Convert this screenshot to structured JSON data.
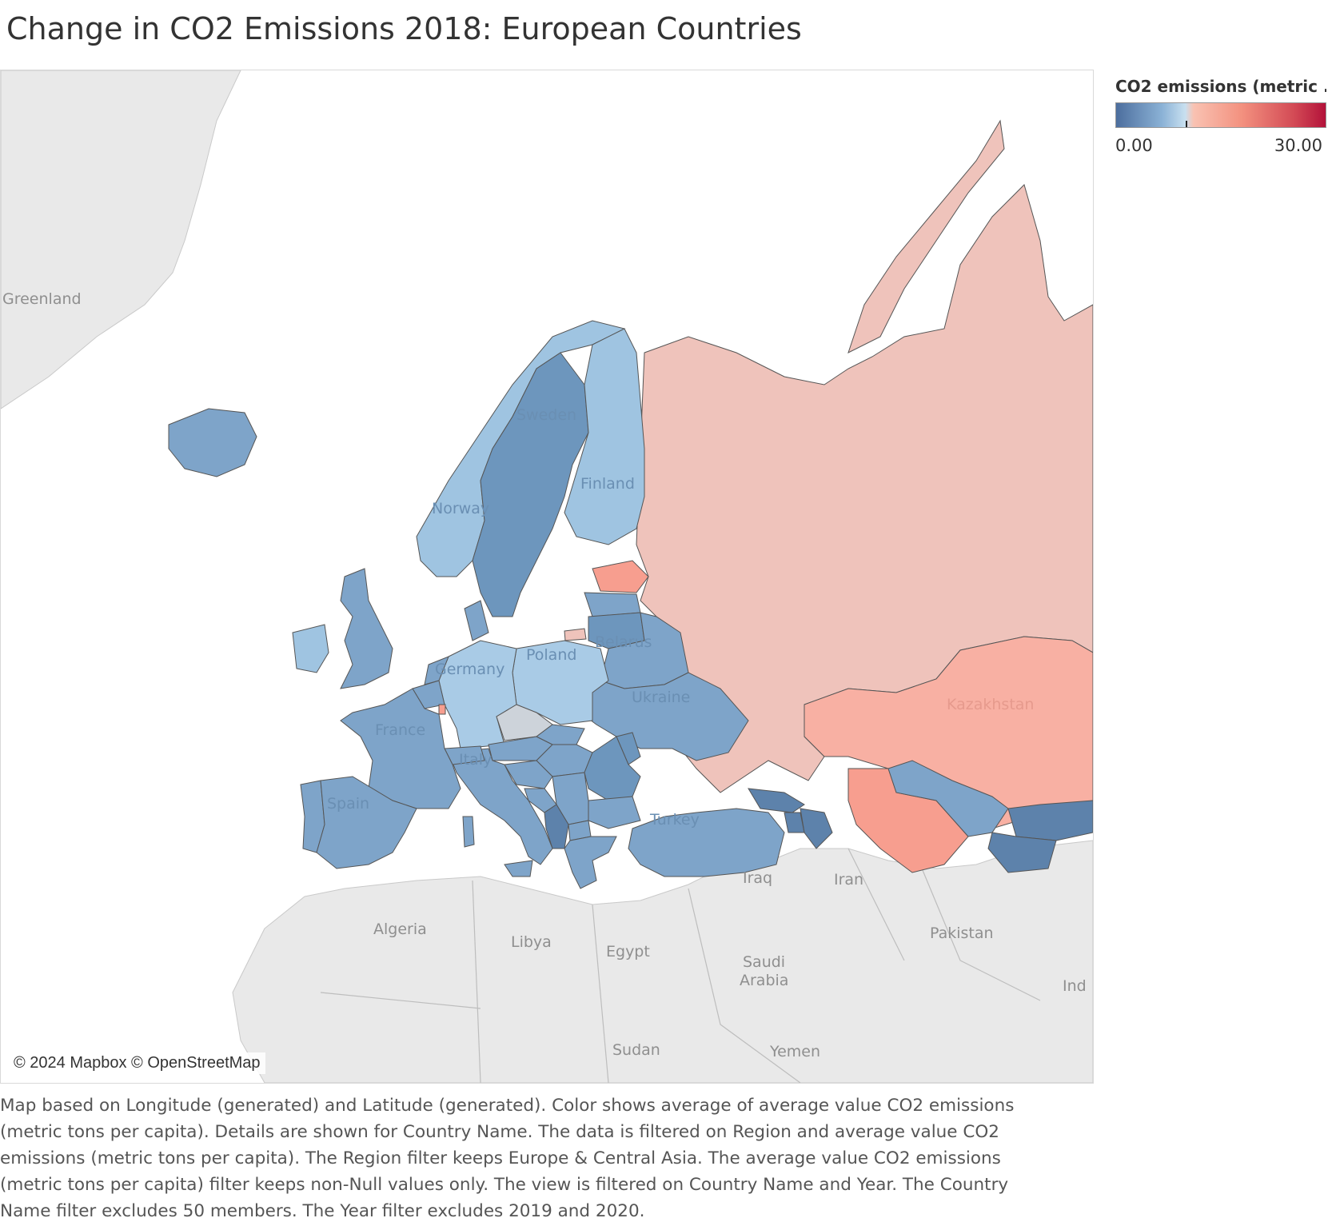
{
  "title": "Change in CO2 Emissions 2018: European Countries",
  "legend": {
    "title": "CO2 emissions (metric ...",
    "min_label": "0.00",
    "max_label": "30.00",
    "colors": {
      "low": "#4c6e9e",
      "mid": "#c8e0f0",
      "high": "#b3123a"
    }
  },
  "attribution": "© 2024 Mapbox © OpenStreetMap",
  "map": {
    "country_labels": {
      "sweden": "Sweden",
      "finland": "Finland",
      "norway": "Norway",
      "poland": "Poland",
      "belarus": "Belarus",
      "germany": "Germany",
      "ukraine": "Ukraine",
      "france": "France",
      "italy": "Italy",
      "spain": "Spain",
      "turkey": "Turkey",
      "kazakhstan": "Kazakhstan"
    },
    "background_labels": {
      "greenland": "Greenland",
      "iraq": "Iraq",
      "iran": "Iran",
      "algeria": "Algeria",
      "libya": "Libya",
      "egypt": "Egypt",
      "pakistan": "Pakistan",
      "saudi_arabia_1": "Saudi",
      "saudi_arabia_2": "Arabia",
      "india": "Ind",
      "sudan": "Sudan",
      "yemen": "Yemen"
    }
  },
  "caption": "Map based on Longitude (generated) and Latitude (generated).  Color shows average of average value CO2 emissions (metric tons per capita).  Details are shown for Country Name. The data is filtered on Region and average value CO2 emissions (metric tons per capita). The Region filter keeps Europe & Central Asia. The average value CO2 emissions (metric tons per capita) filter keeps non-Null values only. The view is filtered on Country Name and Year. The Country Name filter excludes 50 members. The Year filter excludes 2019 and 2020."
}
